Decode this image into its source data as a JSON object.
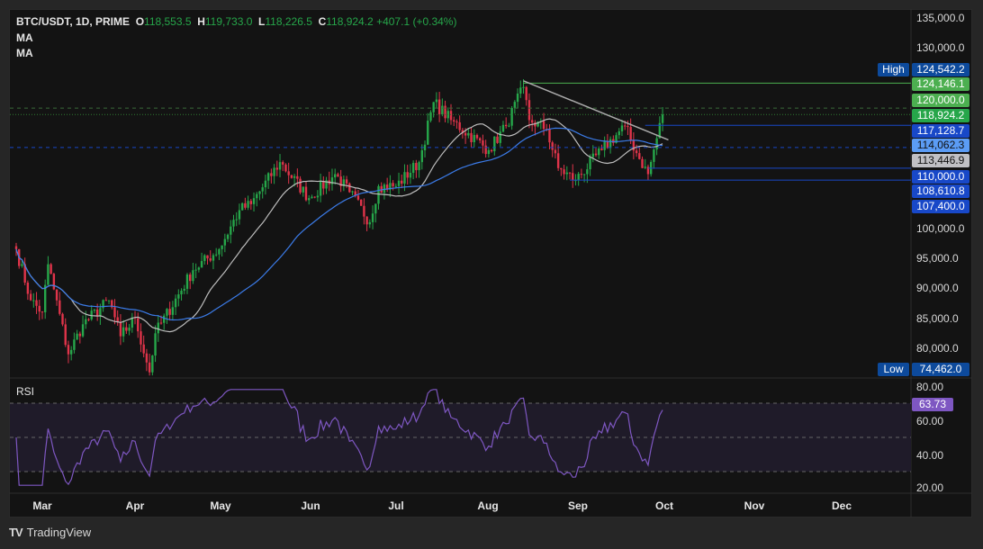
{
  "header": {
    "symbol": "BTC/USDT, 1D, PRIME",
    "o_label": "O",
    "o": "118,553.5",
    "h_label": "H",
    "h": "119,733.0",
    "l_label": "L",
    "l": "118,226.5",
    "c_label": "C",
    "c": "118,924.2",
    "change": "+407.1 (+0.34%)",
    "ma1": "MA",
    "ma2": "MA"
  },
  "price_axis": [
    "135,000.0",
    "130,000.0",
    "100,000.0",
    "95,000.0",
    "90,000.0",
    "85,000.0",
    "80,000.0"
  ],
  "price_axis_values": [
    135000,
    130000,
    100000,
    95000,
    90000,
    85000,
    80000
  ],
  "price_tags": [
    {
      "label": "124,542.2",
      "value": 124542.2,
      "bg": "#0d4a9c"
    },
    {
      "label": "124,146.1",
      "value": 124146.1,
      "bg": "#4caf50"
    },
    {
      "label": "120,000.0",
      "value": 120000,
      "bg": "#4caf50"
    },
    {
      "label": "118,924.2",
      "value": 118924.2,
      "bg": "#26a64a"
    },
    {
      "label": "117,128.7",
      "value": 117128.7,
      "bg": "#1848c8"
    },
    {
      "label": "114,062.3",
      "value": 114062.3,
      "bg": "#5b9cf5"
    },
    {
      "label": "113,446.9",
      "value": 113446.9,
      "bg": "#c0c0c4"
    },
    {
      "label": "110,000.0",
      "value": 110000,
      "bg": "#1848c8"
    },
    {
      "label": "108,610.8",
      "value": 108610.8,
      "bg": "#1848c8"
    },
    {
      "label": "107,400.0",
      "value": 107400,
      "bg": "#1848c8"
    },
    {
      "label": "74,462.0",
      "value": 74462,
      "bg": "#0d4a9c"
    }
  ],
  "high_label": "High",
  "low_label": "Low",
  "rsi": {
    "title": "RSI",
    "value": "63.73",
    "axis": [
      "80.00",
      "60.00",
      "40.00",
      "20.00"
    ]
  },
  "time_axis": [
    "Mar",
    "Apr",
    "May",
    "Jun",
    "Jul",
    "Aug",
    "Sep",
    "Oct",
    "Nov",
    "Dec"
  ],
  "footer": {
    "brand": "TradingView"
  },
  "colors": {
    "up": "#26a64a",
    "down": "#e0344a",
    "ma_fast": "#bdbdbd",
    "ma_slow": "#3b7be8",
    "rsi": "#7e57c2"
  },
  "chart_data": {
    "type": "candlestick",
    "title": "BTC/USDT, 1D",
    "ylim": [
      72000,
      136000
    ],
    "key_closes": [
      [
        "2025-02-20",
        96500
      ],
      [
        "2025-02-25",
        88000
      ],
      [
        "2025-03-01",
        86000
      ],
      [
        "2025-03-03",
        94000
      ],
      [
        "2025-03-10",
        79000
      ],
      [
        "2025-03-15",
        84000
      ],
      [
        "2025-03-24",
        88000
      ],
      [
        "2025-03-28",
        82000
      ],
      [
        "2025-04-02",
        85000
      ],
      [
        "2025-04-07",
        76000
      ],
      [
        "2025-04-09",
        82500
      ],
      [
        "2025-04-22",
        93000
      ],
      [
        "2025-05-01",
        96500
      ],
      [
        "2025-05-08",
        103000
      ],
      [
        "2025-05-12",
        104000
      ],
      [
        "2025-05-22",
        111000
      ],
      [
        "2025-06-01",
        105000
      ],
      [
        "2025-06-10",
        109000
      ],
      [
        "2025-06-15",
        106000
      ],
      [
        "2025-06-22",
        101000
      ],
      [
        "2025-06-25",
        107000
      ],
      [
        "2025-07-01",
        107000
      ],
      [
        "2025-07-09",
        111000
      ],
      [
        "2025-07-14",
        121000
      ],
      [
        "2025-07-20",
        118000
      ],
      [
        "2025-08-02",
        113000
      ],
      [
        "2025-08-08",
        117000
      ],
      [
        "2025-08-14",
        123500
      ],
      [
        "2025-08-16",
        118000
      ],
      [
        "2025-08-22",
        116500
      ],
      [
        "2025-08-26",
        110000
      ],
      [
        "2025-09-01",
        108000
      ],
      [
        "2025-09-10",
        113000
      ],
      [
        "2025-09-18",
        117000
      ],
      [
        "2025-09-22",
        112500
      ],
      [
        "2025-09-26",
        109000
      ],
      [
        "2025-10-01",
        118924
      ]
    ],
    "rsi_levels": [
      70,
      50,
      30
    ]
  }
}
